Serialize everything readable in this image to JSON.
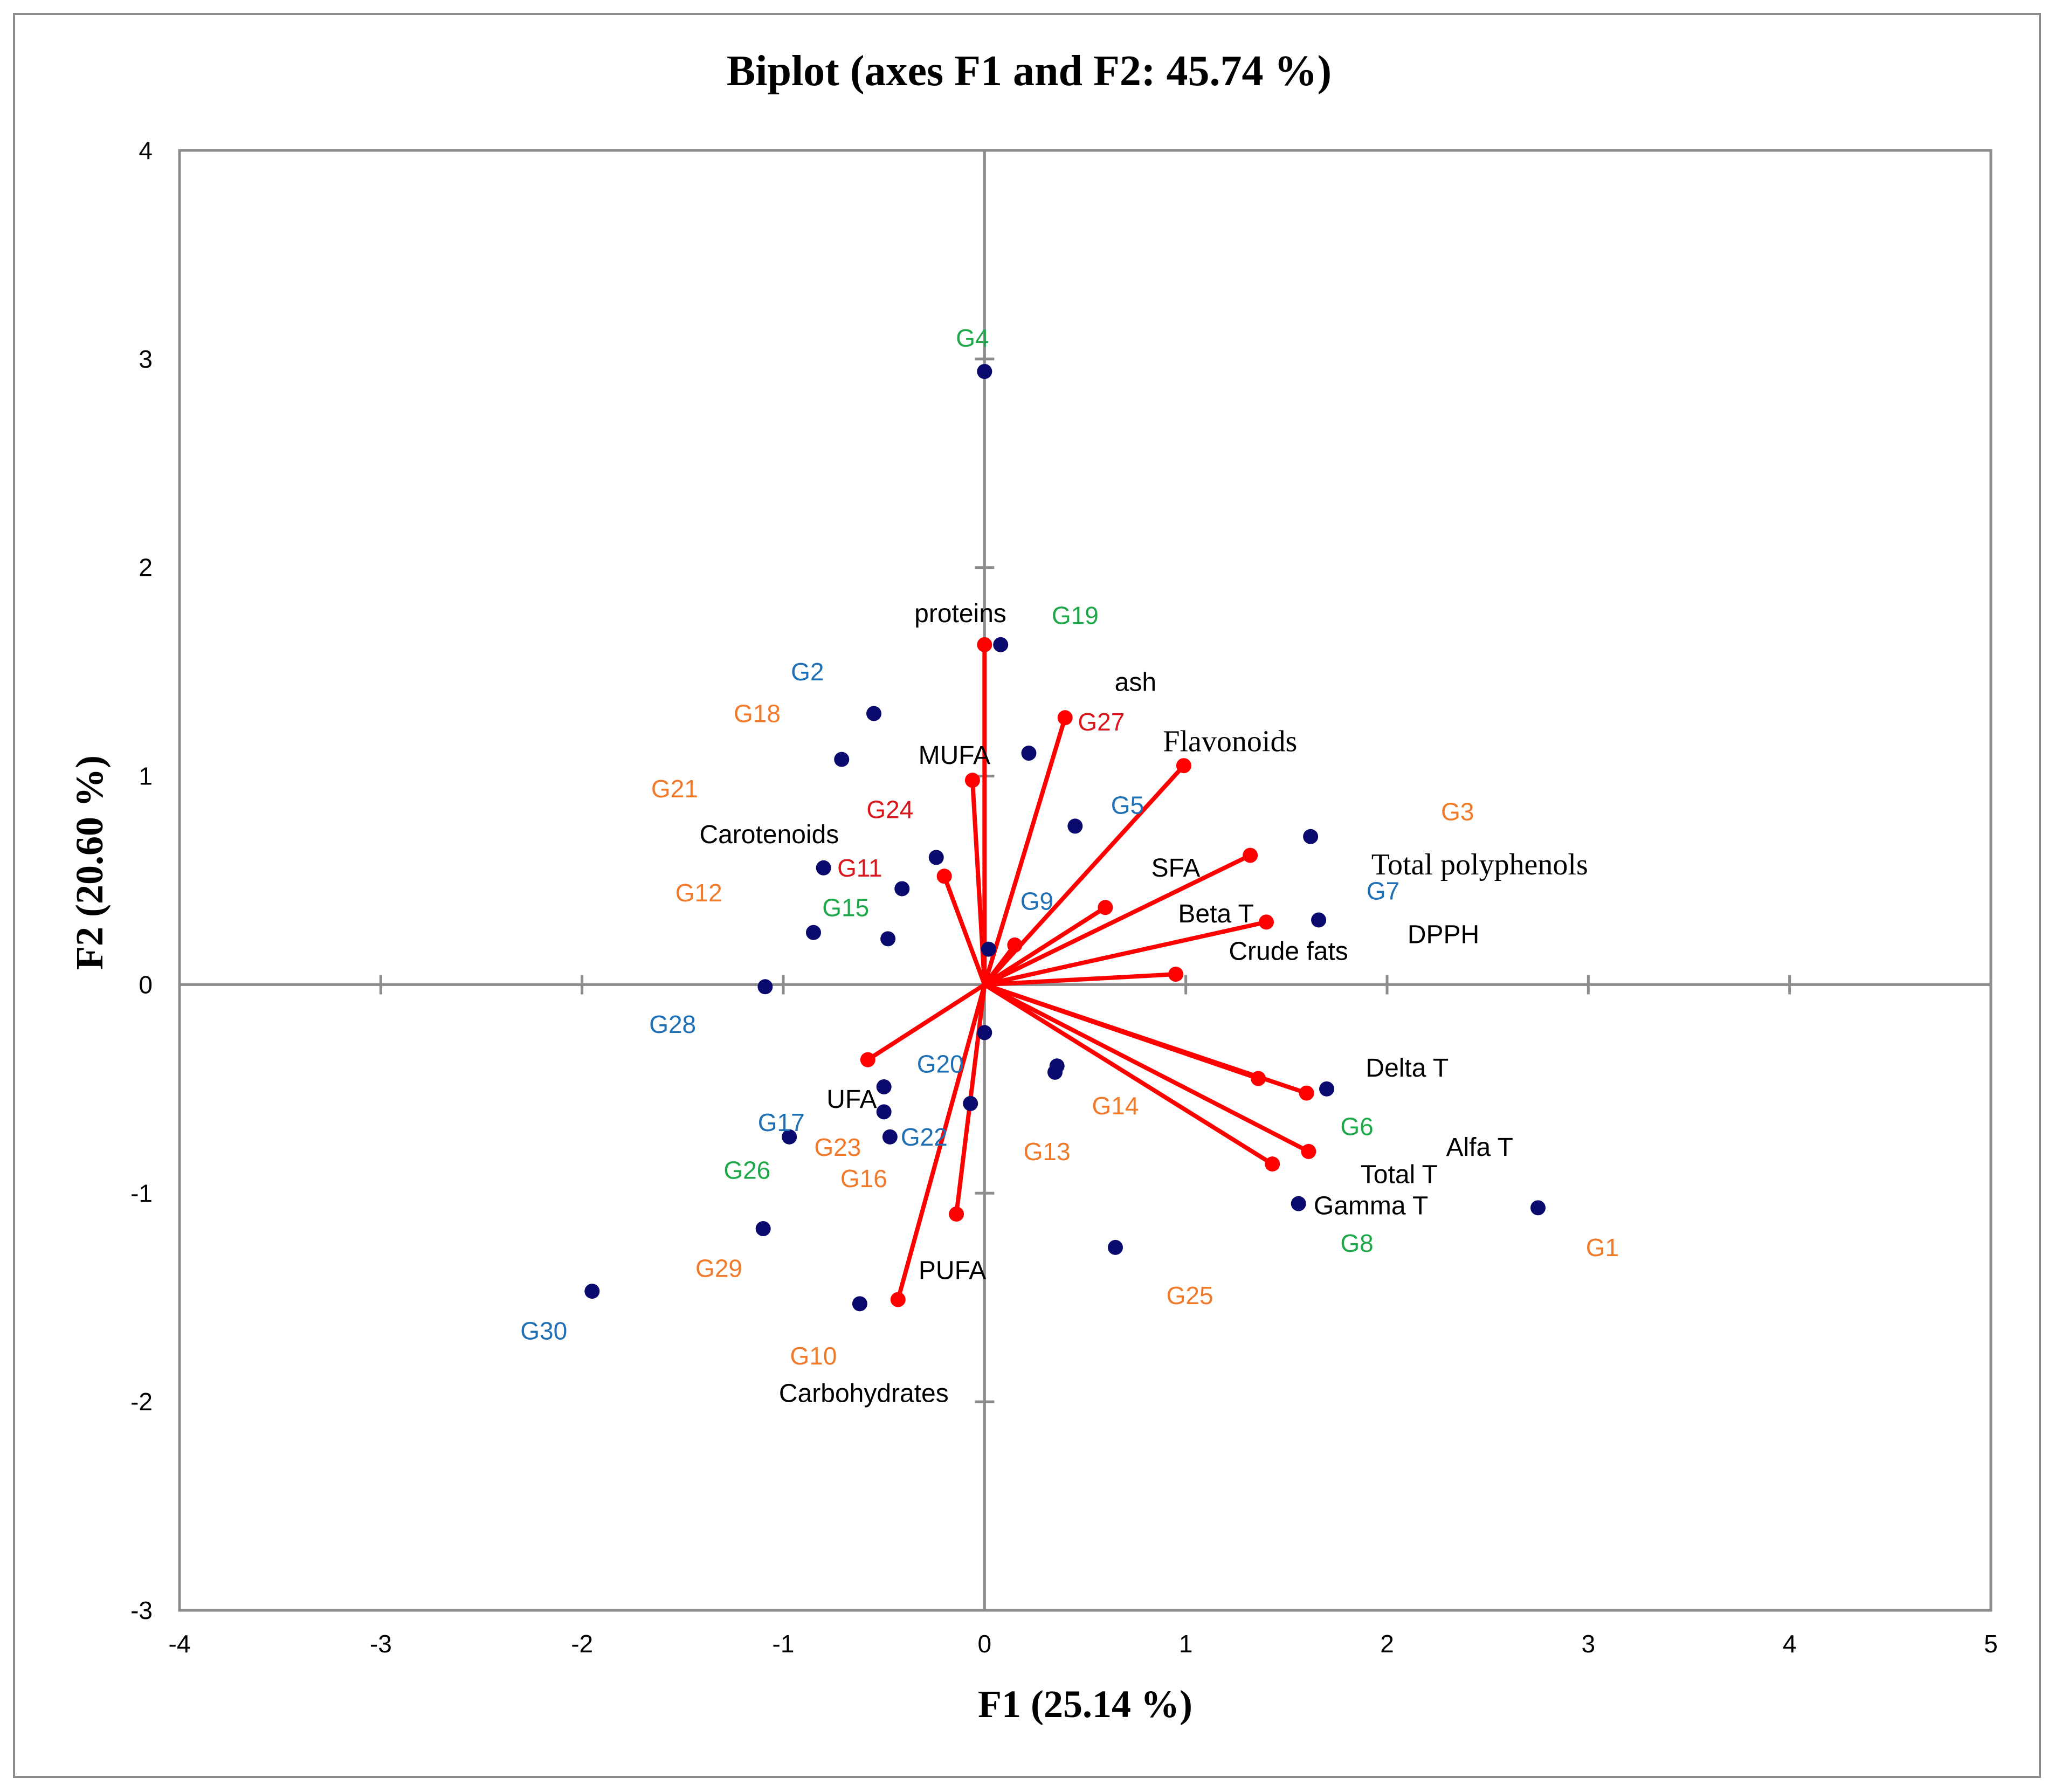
{
  "chart_data": {
    "type": "scatter",
    "title": "Biplot (axes F1 and F2: 45.74 %)",
    "xlabel": "F1 (25.14 %)",
    "ylabel": "F2 (20.60 %)",
    "xlim": [
      -4,
      5
    ],
    "ylim": [
      -3,
      4
    ],
    "xticks": [
      -4,
      -3,
      -2,
      -1,
      0,
      1,
      2,
      3,
      4,
      5
    ],
    "yticks": [
      -3,
      -2,
      -1,
      0,
      1,
      2,
      3,
      4
    ],
    "grid": false,
    "colors": {
      "points": "#0a0a6e",
      "vectors": "#ff0000",
      "axes": "#8c8c8c",
      "label_green": "#1ea84a",
      "label_blue": "#1f6fb5",
      "label_orange": "#f07a2a",
      "label_red": "#d9161c"
    },
    "observations": [
      {
        "name": "G1",
        "x": 2.75,
        "y": -1.07,
        "color": "orange"
      },
      {
        "name": "G2",
        "x": -0.55,
        "y": 1.3,
        "color": "blue"
      },
      {
        "name": "G3",
        "x": 1.62,
        "y": 0.71,
        "color": "orange"
      },
      {
        "name": "G4",
        "x": 0.0,
        "y": 2.94,
        "color": "green"
      },
      {
        "name": "G5",
        "x": 0.45,
        "y": 0.76,
        "color": "blue"
      },
      {
        "name": "G6",
        "x": 1.7,
        "y": -0.5,
        "color": "green"
      },
      {
        "name": "G7",
        "x": 1.66,
        "y": 0.31,
        "color": "blue"
      },
      {
        "name": "G8",
        "x": 1.56,
        "y": -1.05,
        "color": "green"
      },
      {
        "name": "G9",
        "x": 0.02,
        "y": 0.17,
        "color": "blue"
      },
      {
        "name": "G10",
        "x": -0.62,
        "y": -1.53,
        "color": "orange"
      },
      {
        "name": "G11",
        "x": -0.41,
        "y": 0.46,
        "color": "red"
      },
      {
        "name": "G12",
        "x": -0.85,
        "y": 0.25,
        "color": "orange"
      },
      {
        "name": "G13",
        "x": 0.35,
        "y": -0.42,
        "color": "orange"
      },
      {
        "name": "G14",
        "x": 0.36,
        "y": -0.39,
        "color": "orange"
      },
      {
        "name": "G15",
        "x": -0.48,
        "y": 0.22,
        "color": "green"
      },
      {
        "name": "G16",
        "x": -0.5,
        "y": -0.61,
        "color": "orange"
      },
      {
        "name": "G17",
        "x": -0.97,
        "y": -0.73,
        "color": "blue"
      },
      {
        "name": "G18",
        "x": -0.71,
        "y": 1.08,
        "color": "orange"
      },
      {
        "name": "G19",
        "x": 0.08,
        "y": 1.63,
        "color": "green"
      },
      {
        "name": "G20",
        "x": -0.5,
        "y": -0.49,
        "color": "blue"
      },
      {
        "name": "G21",
        "x": -0.8,
        "y": 0.56,
        "color": "orange"
      },
      {
        "name": "G22",
        "x": -0.07,
        "y": -0.57,
        "color": "blue"
      },
      {
        "name": "G23",
        "x": -0.47,
        "y": -0.73,
        "color": "orange"
      },
      {
        "name": "G24",
        "x": -0.24,
        "y": 0.61,
        "color": "red"
      },
      {
        "name": "G25",
        "x": 0.65,
        "y": -1.26,
        "color": "orange"
      },
      {
        "name": "G26",
        "x": -1.1,
        "y": -1.17,
        "color": "green"
      },
      {
        "name": "G27",
        "x": 0.22,
        "y": 1.11,
        "color": "red"
      },
      {
        "name": "G28",
        "x": -1.09,
        "y": -0.01,
        "color": "blue"
      },
      {
        "name": "G29",
        "x": -1.95,
        "y": -1.47,
        "color": "orange"
      },
      {
        "name": "G30",
        "x": 0.0,
        "y": -0.23,
        "color": "blue"
      }
    ],
    "variables": [
      {
        "name": "proteins",
        "x": 0.0,
        "y": 1.63
      },
      {
        "name": "ash",
        "x": 0.4,
        "y": 1.28
      },
      {
        "name": "Flavonoids",
        "x": 0.99,
        "y": 1.05
      },
      {
        "name": "MUFA",
        "x": -0.06,
        "y": 0.98
      },
      {
        "name": "Carotenoids",
        "x": -0.2,
        "y": 0.52
      },
      {
        "name": "SFA",
        "x": 1.32,
        "y": 0.62
      },
      {
        "name": "Total polyphenols",
        "x": 0.15,
        "y": 0.19
      },
      {
        "name": "Beta T",
        "x": 0.6,
        "y": 0.37
      },
      {
        "name": "Crude fats",
        "x": 1.4,
        "y": 0.3
      },
      {
        "name": "DPPH",
        "x": 0.95,
        "y": 0.05
      },
      {
        "name": "Delta T",
        "x": 1.6,
        "y": -0.52
      },
      {
        "name": "Alfa T",
        "x": 1.61,
        "y": -0.8
      },
      {
        "name": "Total T",
        "x": 1.36,
        "y": -0.45
      },
      {
        "name": "Gamma T",
        "x": 1.43,
        "y": -0.86
      },
      {
        "name": "UFA",
        "x": -0.58,
        "y": -0.36
      },
      {
        "name": "PUFA",
        "x": -0.14,
        "y": -1.1
      },
      {
        "name": "Carbohydrates",
        "x": -0.43,
        "y": -1.51
      }
    ]
  }
}
